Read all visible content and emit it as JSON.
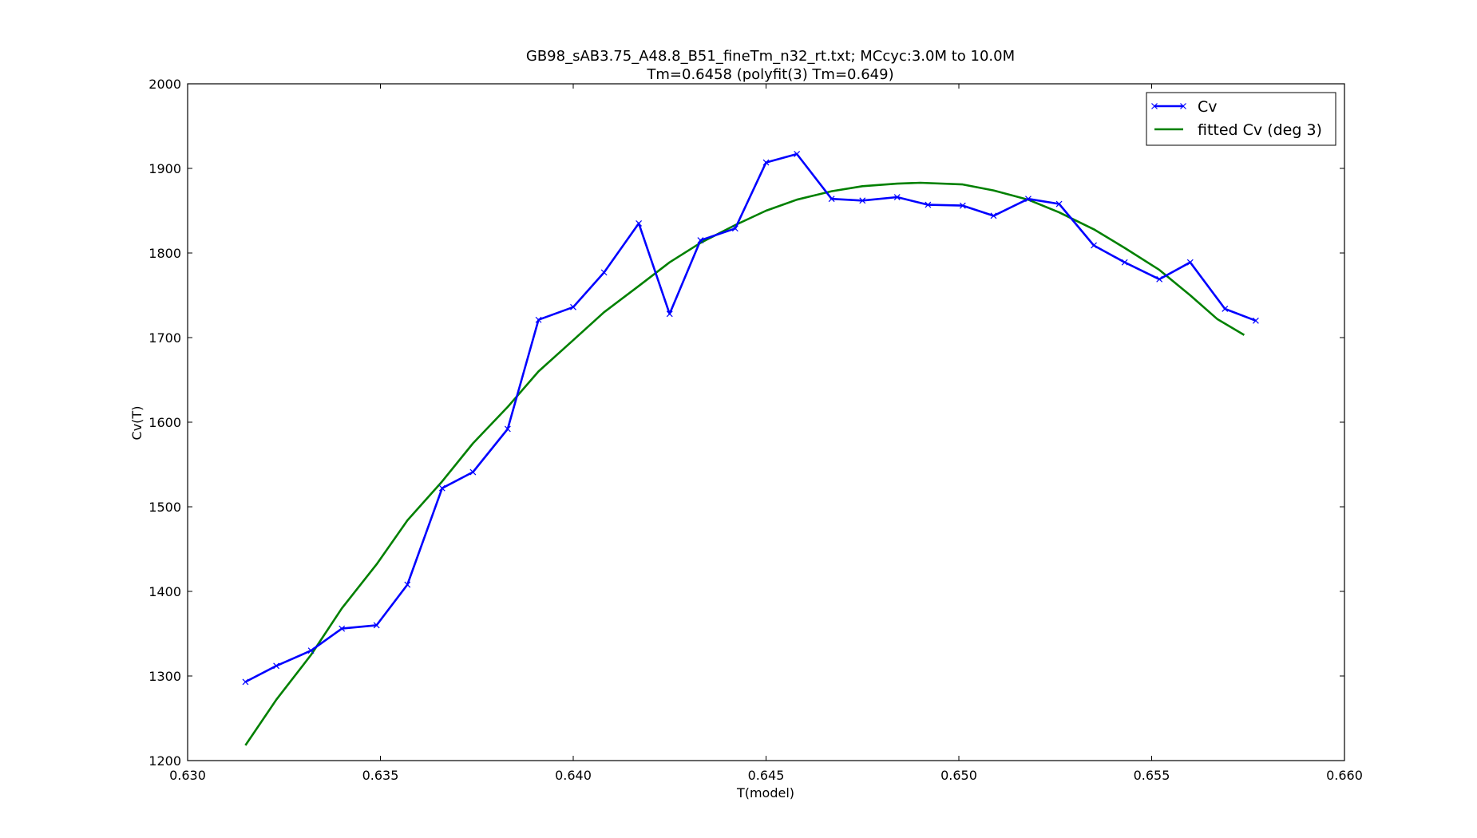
{
  "chart_data": {
    "type": "line",
    "title": "GB98_sAB3.75_A48.8_B51_fineTm_n32_rt.txt; MCcyc:3.0M to 10.0M",
    "subtitle": "Tm=0.6458 (polyfit(3) Tm=0.649)",
    "xlabel": "T(model)",
    "ylabel": "Cv(T)",
    "xlim": [
      0.63,
      0.66
    ],
    "ylim": [
      1200,
      2000
    ],
    "xticks": [
      "0.630",
      "0.635",
      "0.640",
      "0.645",
      "0.650",
      "0.655",
      "0.660"
    ],
    "yticks": [
      "1200",
      "1300",
      "1400",
      "1500",
      "1600",
      "1700",
      "1800",
      "1900",
      "2000"
    ],
    "grid": false,
    "legend_position": "top-right",
    "series": [
      {
        "name": "Cv",
        "color": "#0000ff",
        "marker": "x",
        "x": [
          0.6315,
          0.6323,
          0.6332,
          0.634,
          0.6349,
          0.6357,
          0.6366,
          0.6374,
          0.6383,
          0.6391,
          0.64,
          0.6408,
          0.6417,
          0.6425,
          0.6433,
          0.6442,
          0.645,
          0.6458,
          0.6467,
          0.6475,
          0.6484,
          0.6492,
          0.6501,
          0.6509,
          0.6518,
          0.6526,
          0.6535,
          0.6543,
          0.6552,
          0.656,
          0.6569,
          0.6577
        ],
        "y": [
          1293,
          1312,
          1330,
          1356,
          1360,
          1408,
          1522,
          1541,
          1592,
          1721,
          1736,
          1777,
          1835,
          1728,
          1815,
          1829,
          1907,
          1917,
          1864,
          1862,
          1866,
          1857,
          1856,
          1844,
          1864,
          1858,
          1809,
          1789,
          1769,
          1789,
          1734,
          1720
        ]
      },
      {
        "name": "fitted Cv (deg 3)",
        "color": "#008000",
        "marker": "none",
        "x": [
          0.6315,
          0.6323,
          0.6332,
          0.634,
          0.6349,
          0.6357,
          0.6366,
          0.6374,
          0.6383,
          0.6391,
          0.64,
          0.6408,
          0.6417,
          0.6425,
          0.6433,
          0.6442,
          0.645,
          0.6458,
          0.6467,
          0.6475,
          0.6484,
          0.649,
          0.6501,
          0.6509,
          0.6518,
          0.6526,
          0.6535,
          0.6543,
          0.6552,
          0.656,
          0.6567,
          0.6574
        ],
        "y": [
          1218,
          1272,
          1325,
          1380,
          1432,
          1484,
          1530,
          1575,
          1618,
          1660,
          1697,
          1730,
          1761,
          1789,
          1812,
          1833,
          1850,
          1863,
          1873,
          1879,
          1882,
          1883,
          1881,
          1874,
          1863,
          1848,
          1828,
          1806,
          1780,
          1750,
          1722,
          1703
        ]
      }
    ]
  }
}
